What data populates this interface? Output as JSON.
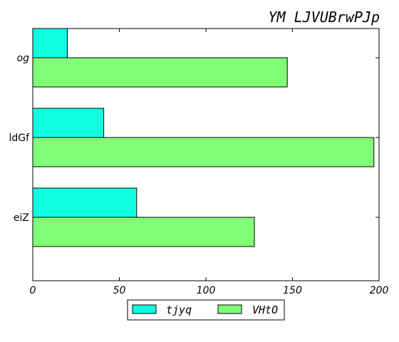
{
  "chart_data": {
    "type": "bar",
    "orientation": "horizontal",
    "title": "YM LJVUBrwPJp",
    "categories": [
      "og",
      "ldGf",
      "eiZ"
    ],
    "category_italic": [
      true,
      false,
      false
    ],
    "series": [
      {
        "name": "tjyq",
        "values": [
          20,
          41,
          60
        ],
        "color": "#10ffe3"
      },
      {
        "name": "VHtO",
        "values": [
          147,
          197,
          128
        ],
        "color": "#80ff77"
      }
    ],
    "xlim": [
      0,
      200
    ],
    "xticks": [
      0,
      50,
      100,
      150,
      200
    ],
    "grid": false,
    "legend_position": "bottom-center",
    "xlabel": "",
    "ylabel": ""
  }
}
